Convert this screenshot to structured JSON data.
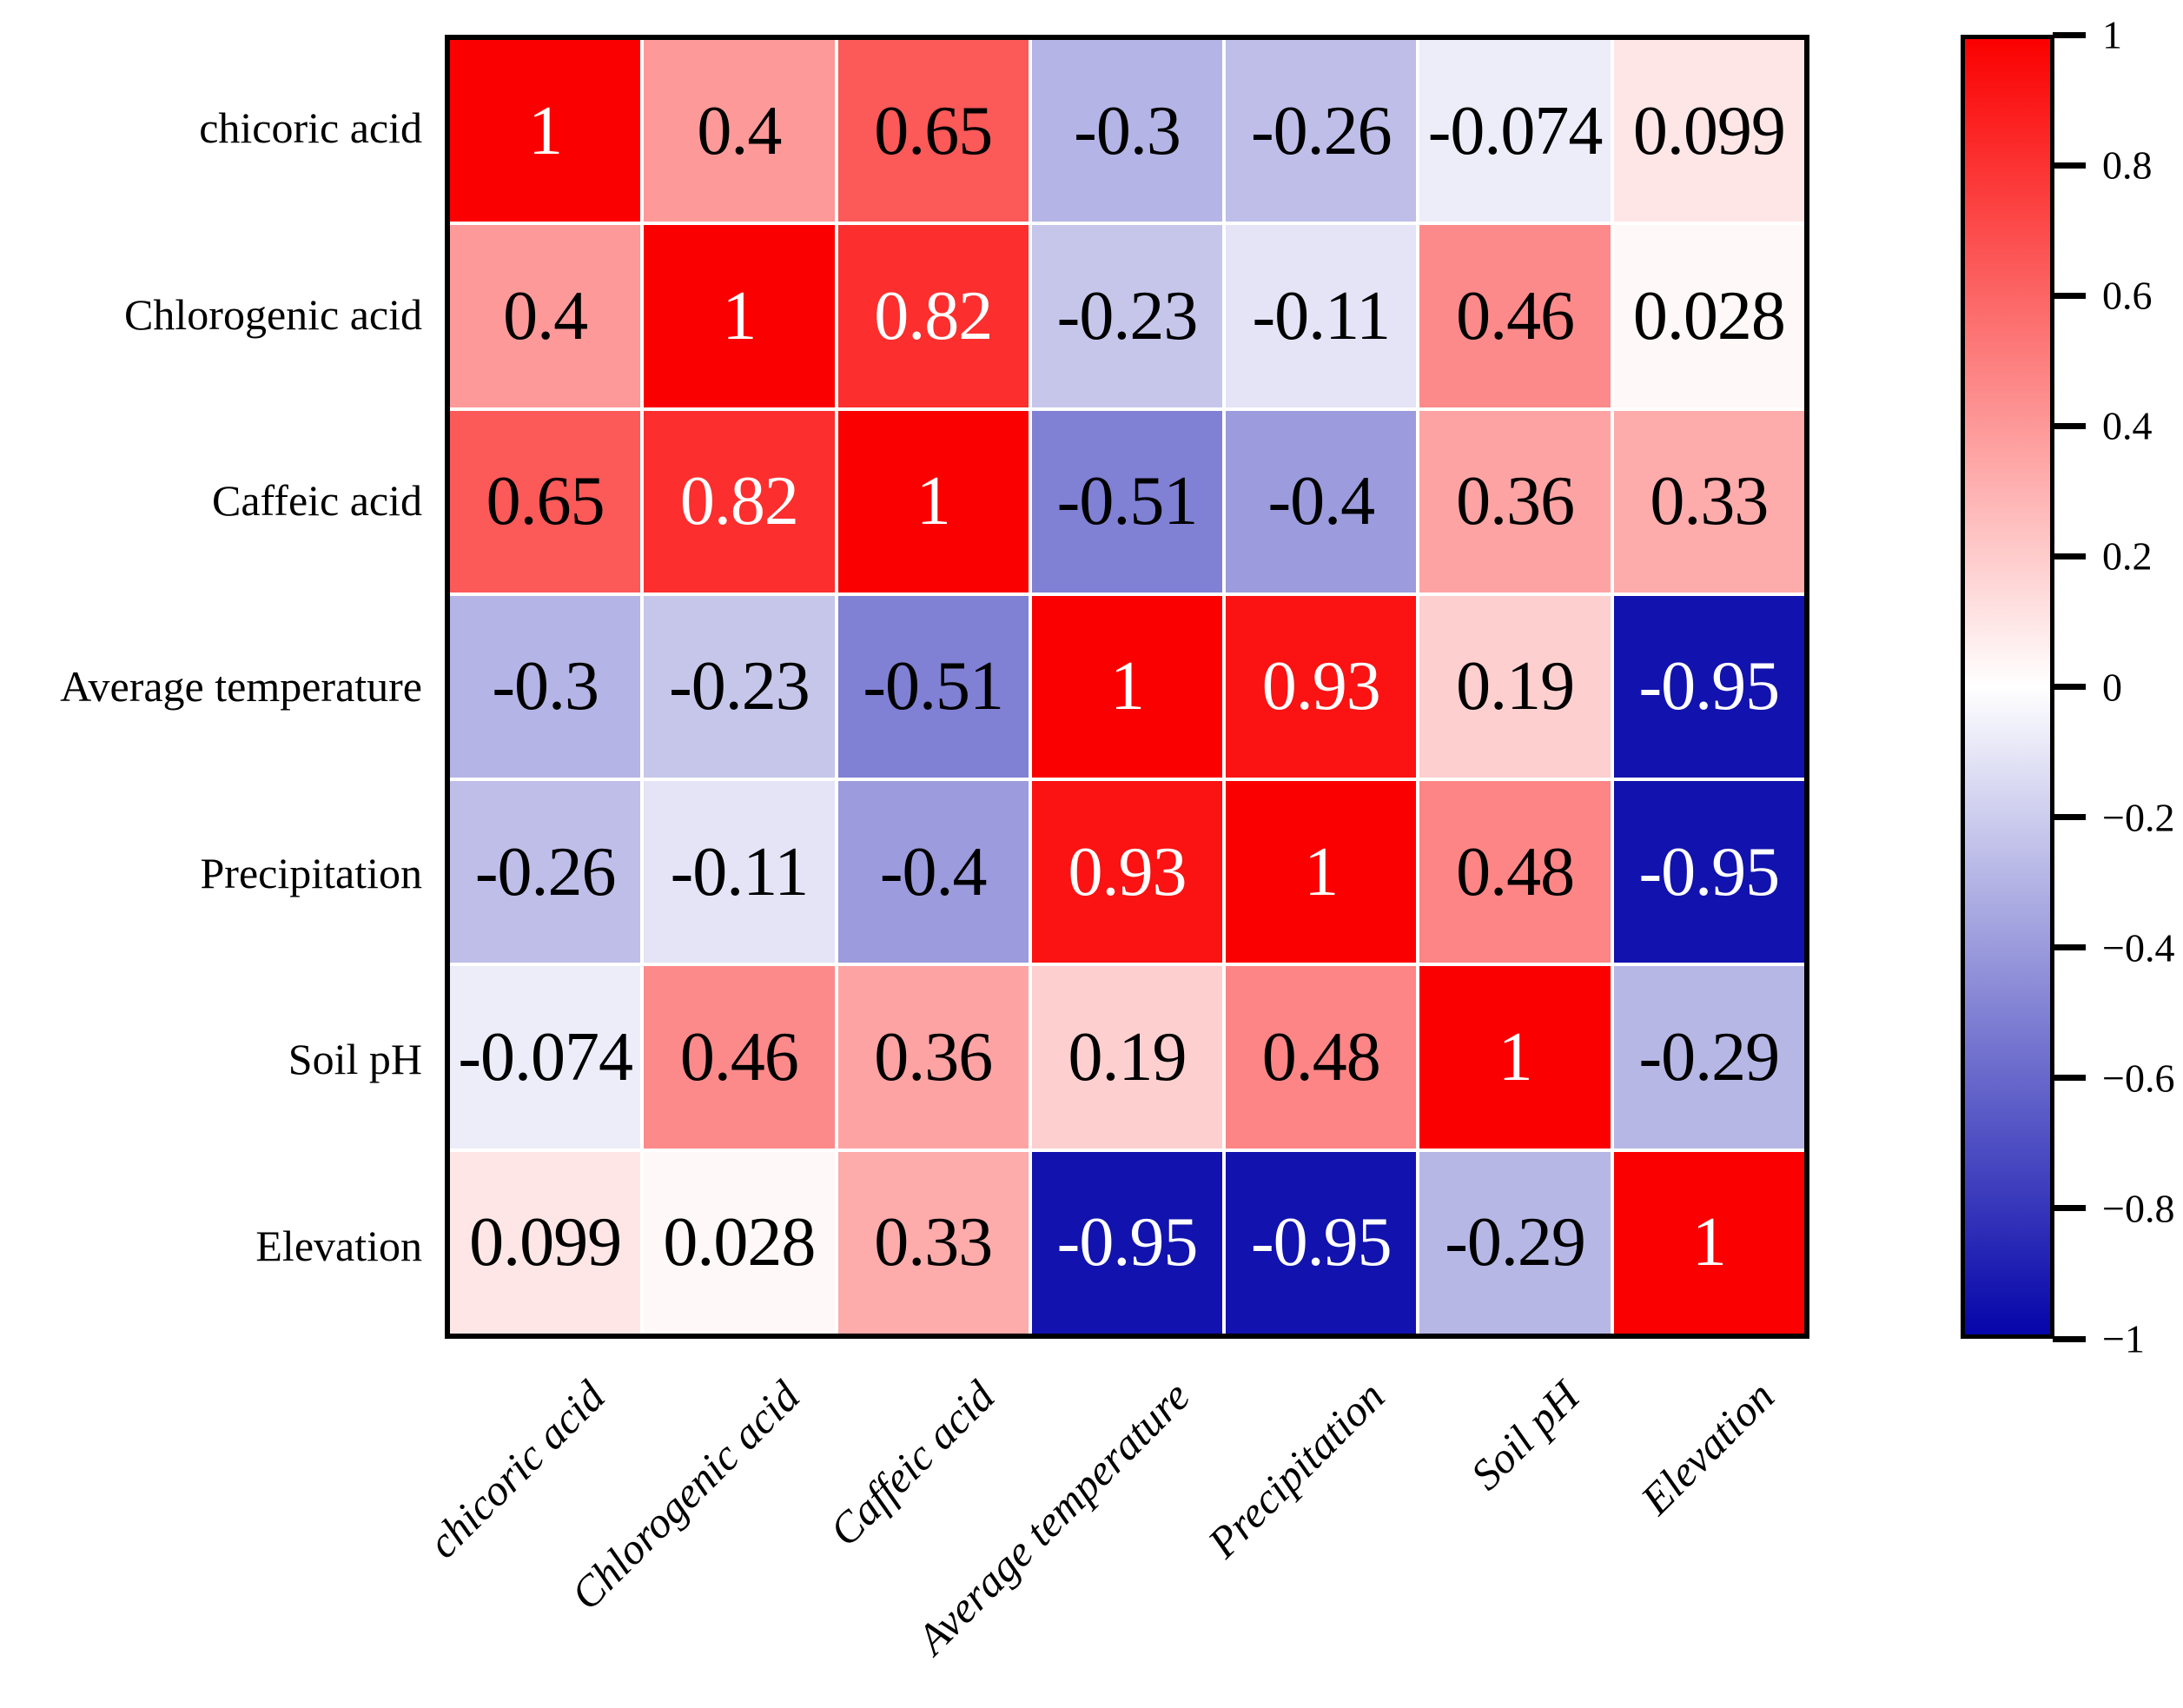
{
  "chart_data": {
    "type": "heatmap",
    "title": "",
    "xlabel": "",
    "ylabel": "",
    "categories": [
      "chicoric acid",
      "Chlorogenic acid",
      "Caffeic acid",
      "Average temperature",
      "Precipitation",
      "Soil pH",
      "Elevation"
    ],
    "matrix": [
      [
        1,
        0.4,
        0.65,
        -0.3,
        -0.26,
        -0.074,
        0.099
      ],
      [
        0.4,
        1,
        0.82,
        -0.23,
        -0.11,
        0.46,
        0.028
      ],
      [
        0.65,
        0.82,
        1,
        -0.51,
        -0.4,
        0.36,
        0.33
      ],
      [
        -0.3,
        -0.23,
        -0.51,
        1,
        0.93,
        0.19,
        -0.95
      ],
      [
        -0.26,
        -0.11,
        -0.4,
        0.93,
        1,
        0.48,
        -0.95
      ],
      [
        -0.074,
        0.46,
        0.36,
        0.19,
        0.48,
        1,
        -0.29
      ],
      [
        0.099,
        0.028,
        0.33,
        -0.95,
        -0.95,
        -0.29,
        1
      ]
    ],
    "value_labels": [
      [
        "1",
        "0.4",
        "0.65",
        "-0.3",
        "-0.26",
        "-0.074",
        "0.099"
      ],
      [
        "0.4",
        "1",
        "0.82",
        "-0.23",
        "-0.11",
        "0.46",
        "0.028"
      ],
      [
        "0.65",
        "0.82",
        "1",
        "-0.51",
        "-0.4",
        "0.36",
        "0.33"
      ],
      [
        "-0.3",
        "-0.23",
        "-0.51",
        "1",
        "0.93",
        "0.19",
        "-0.95"
      ],
      [
        "-0.26",
        "-0.11",
        "-0.4",
        "0.93",
        "1",
        "0.48",
        "-0.95"
      ],
      [
        "-0.074",
        "0.46",
        "0.36",
        "0.19",
        "0.48",
        "1",
        "-0.29"
      ],
      [
        "0.099",
        "0.028",
        "0.33",
        "-0.95",
        "-0.95",
        "-0.29",
        "1"
      ]
    ],
    "colorbar": {
      "tick_labels": [
        "1",
        "0.8",
        "0.6",
        "0.4",
        "0.2",
        "0",
        "−0.2",
        "−0.4",
        "−0.6",
        "−0.8",
        "−1"
      ],
      "tick_values": [
        1,
        0.8,
        0.6,
        0.4,
        0.2,
        0,
        -0.2,
        -0.4,
        -0.6,
        -0.8,
        -1
      ],
      "range": [
        -1,
        1
      ]
    },
    "colors": {
      "positive_end": "#fb0000",
      "midpoint": "#ffffff",
      "negative_end": "#0505aa",
      "grid_line": "#ffffff",
      "border": "#000000",
      "text_dark": "#000000",
      "text_light": "#ffffff",
      "white_text_threshold": 0.8
    },
    "layout_hints": {
      "legend_position": "right-colorbar",
      "x_tick_rotation_deg": 45,
      "x_tick_style": "italic",
      "grid": "white gaps between cells"
    }
  }
}
